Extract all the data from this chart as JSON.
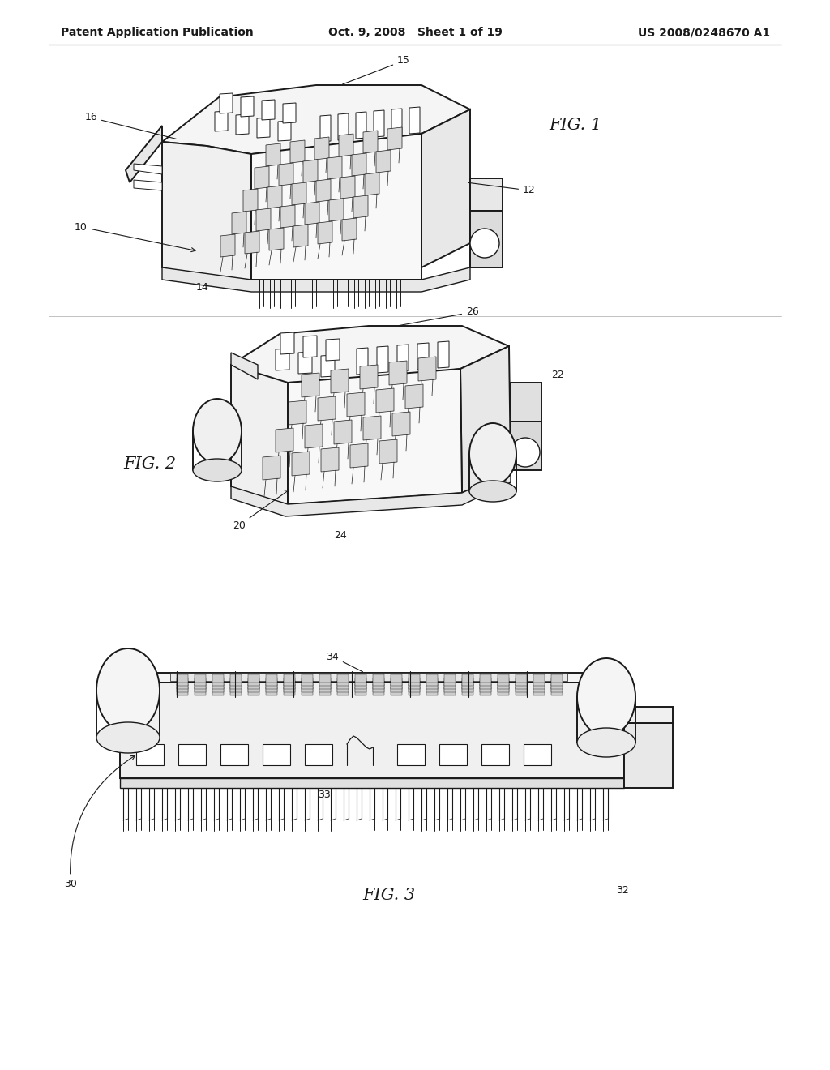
{
  "background_color": "#ffffff",
  "header_left": "Patent Application Publication",
  "header_center": "Oct. 9, 2008   Sheet 1 of 19",
  "header_right": "US 2008/0248670 A1",
  "line_color": "#1a1a1a",
  "fill_white": "#ffffff",
  "fill_light": "#f0f0f0",
  "fill_mid": "#e0e0e0",
  "fill_dark": "#c8c8c8",
  "fig1_label": "FIG. 1",
  "fig2_label": "FIG. 2",
  "fig3_label": "FIG. 3",
  "ref_fontsize": 9,
  "header_fontsize": 10,
  "fig_label_fontsize": 15
}
